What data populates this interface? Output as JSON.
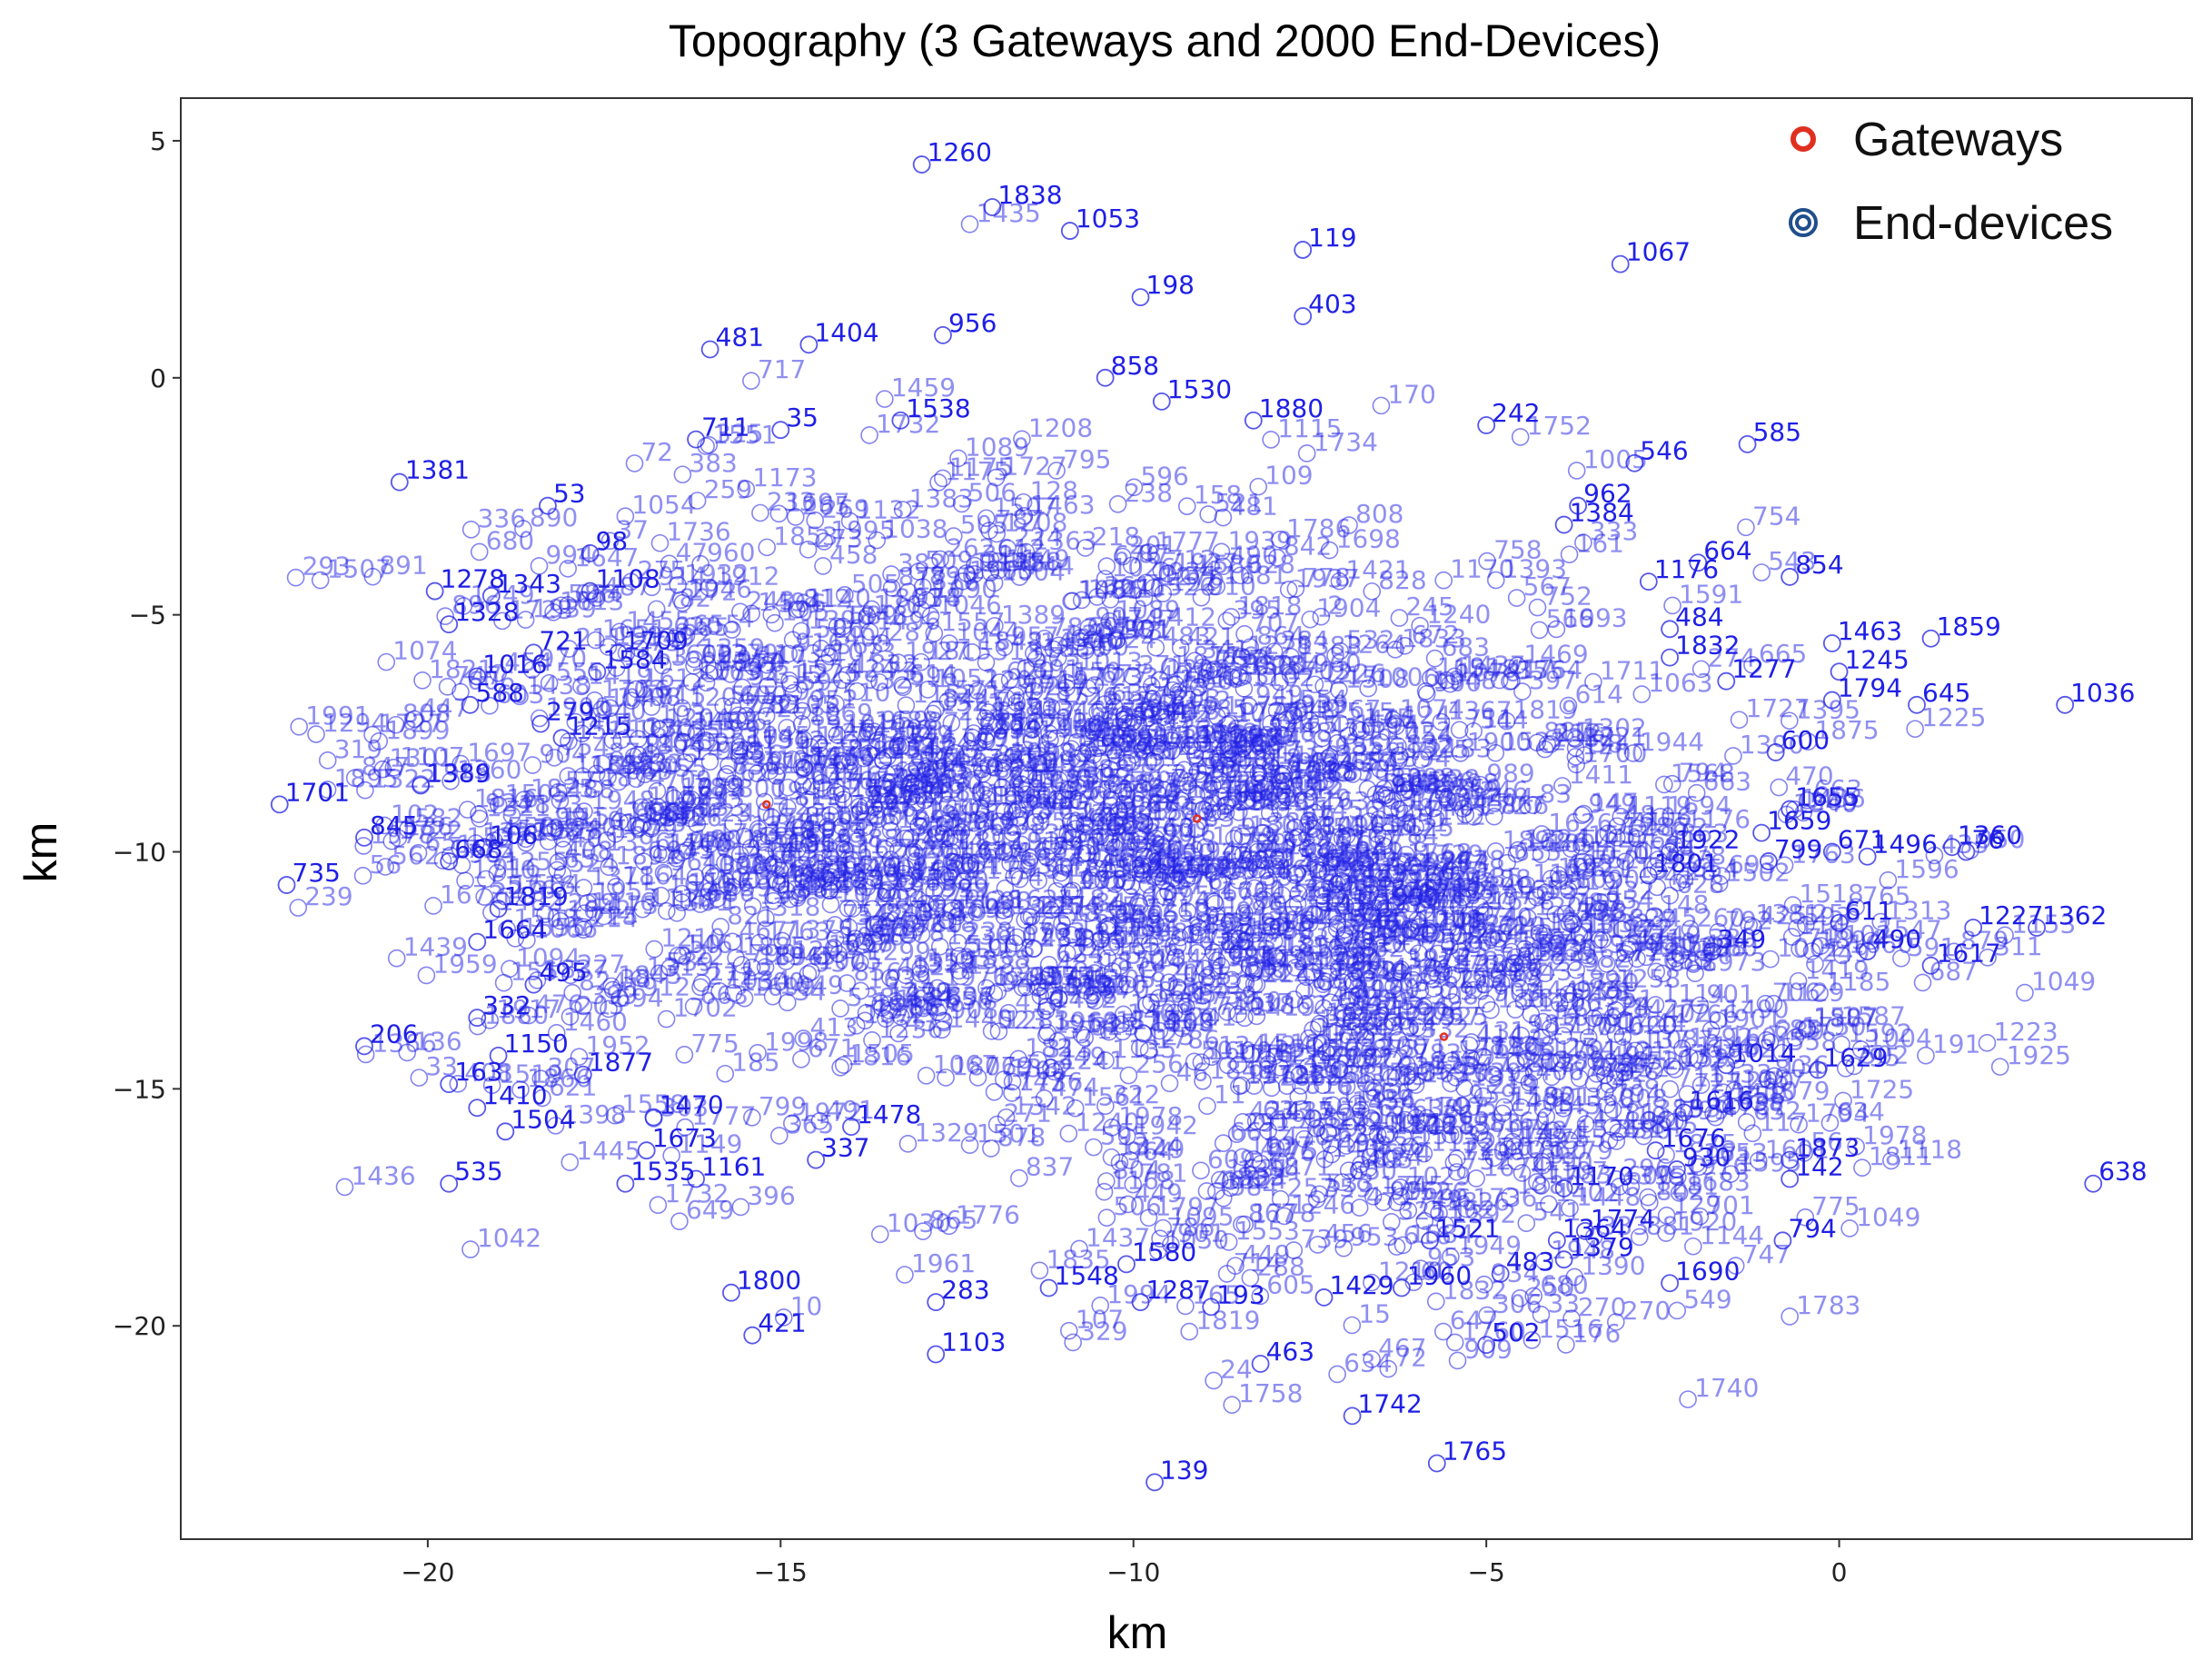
{
  "colors": {
    "end_device": "#1f1fe6",
    "gateway": "#e03020",
    "legend_end": "#1f4e8c"
  },
  "chart_data": {
    "type": "scatter",
    "title": "Topography (3 Gateways and 2000 End-Devices)",
    "xlabel": "km",
    "ylabel": "km",
    "xlim": [
      -23.5,
      5.0
    ],
    "ylim": [
      -24.5,
      5.9
    ],
    "xticks": [
      -20,
      -15,
      -10,
      -5,
      0
    ],
    "yticks": [
      5,
      0,
      -5,
      -10,
      -15,
      -20
    ],
    "xtick_labels": [
      "−20",
      "−15",
      "−10",
      "−5",
      "0"
    ],
    "ytick_labels": [
      "5",
      "0",
      "−5",
      "−10",
      "−15",
      "−20"
    ],
    "grid": false,
    "legend_position": "top-right",
    "series": [
      {
        "name": "Gateways",
        "points": [
          {
            "x": -15.2,
            "y": -9.0
          },
          {
            "x": -9.1,
            "y": -9.3
          },
          {
            "x": -5.6,
            "y": -13.9
          }
        ]
      },
      {
        "name": "End-devices",
        "labeled_points": [
          {
            "id": "1260",
            "x": -13.0,
            "y": 4.5
          },
          {
            "id": "1838",
            "x": -12.0,
            "y": 3.6
          },
          {
            "id": "1053",
            "x": -10.9,
            "y": 3.1
          },
          {
            "id": "119",
            "x": -7.6,
            "y": 2.7
          },
          {
            "id": "1067",
            "x": -3.1,
            "y": 2.4
          },
          {
            "id": "198",
            "x": -9.9,
            "y": 1.7
          },
          {
            "id": "403",
            "x": -7.6,
            "y": 1.3
          },
          {
            "id": "481",
            "x": -16.0,
            "y": 0.6
          },
          {
            "id": "1404",
            "x": -14.6,
            "y": 0.7
          },
          {
            "id": "956",
            "x": -12.7,
            "y": 0.9
          },
          {
            "id": "858",
            "x": -10.4,
            "y": 0.0
          },
          {
            "id": "1530",
            "x": -9.6,
            "y": -0.5
          },
          {
            "id": "1880",
            "x": -8.3,
            "y": -0.9
          },
          {
            "id": "242",
            "x": -5.0,
            "y": -1.0
          },
          {
            "id": "585",
            "x": -1.3,
            "y": -1.4
          },
          {
            "id": "546",
            "x": -2.9,
            "y": -1.8
          },
          {
            "id": "711",
            "x": -16.2,
            "y": -1.3
          },
          {
            "id": "35",
            "x": -15.0,
            "y": -1.1
          },
          {
            "id": "1538",
            "x": -13.3,
            "y": -0.9
          },
          {
            "id": "1381",
            "x": -20.4,
            "y": -2.2
          },
          {
            "id": "53",
            "x": -18.3,
            "y": -2.7
          },
          {
            "id": "962",
            "x": -3.7,
            "y": -2.7
          },
          {
            "id": "1384",
            "x": -3.9,
            "y": -3.1
          },
          {
            "id": "98",
            "x": -17.7,
            "y": -3.7
          },
          {
            "id": "664",
            "x": -2.0,
            "y": -3.9
          },
          {
            "id": "854",
            "x": -0.7,
            "y": -4.2
          },
          {
            "id": "1176",
            "x": -2.7,
            "y": -4.3
          },
          {
            "id": "1278",
            "x": -19.9,
            "y": -4.5
          },
          {
            "id": "1343",
            "x": -19.1,
            "y": -4.6
          },
          {
            "id": "1108",
            "x": -17.7,
            "y": -4.5
          },
          {
            "id": "1328",
            "x": -19.7,
            "y": -5.2
          },
          {
            "id": "1709",
            "x": -17.3,
            "y": -5.8
          },
          {
            "id": "484",
            "x": -2.4,
            "y": -5.3
          },
          {
            "id": "1832",
            "x": -2.4,
            "y": -5.9
          },
          {
            "id": "1463",
            "x": -0.1,
            "y": -5.6
          },
          {
            "id": "1859",
            "x": 1.3,
            "y": -5.5
          },
          {
            "id": "1245",
            "x": 0.0,
            "y": -6.2
          },
          {
            "id": "721",
            "x": -18.5,
            "y": -5.8
          },
          {
            "id": "1584",
            "x": -17.6,
            "y": -6.2
          },
          {
            "id": "1016",
            "x": -19.3,
            "y": -6.3
          },
          {
            "id": "588",
            "x": -19.4,
            "y": -6.9
          },
          {
            "id": "1277",
            "x": -1.6,
            "y": -6.4
          },
          {
            "id": "1794",
            "x": -0.1,
            "y": -6.8
          },
          {
            "id": "645",
            "x": 1.1,
            "y": -6.9
          },
          {
            "id": "1036",
            "x": 3.2,
            "y": -6.9
          },
          {
            "id": "279",
            "x": -18.4,
            "y": -7.3
          },
          {
            "id": "1215",
            "x": -18.1,
            "y": -7.6
          },
          {
            "id": "600",
            "x": -0.9,
            "y": -7.9
          },
          {
            "id": "1389",
            "x": -20.1,
            "y": -8.6
          },
          {
            "id": "1701",
            "x": -22.1,
            "y": -9.0
          },
          {
            "id": "845",
            "x": -20.9,
            "y": -9.7
          },
          {
            "id": "735",
            "x": -22.0,
            "y": -10.7
          },
          {
            "id": "1655",
            "x": -0.7,
            "y": -9.1
          },
          {
            "id": "1659",
            "x": -1.1,
            "y": -9.6
          },
          {
            "id": "1922",
            "x": -2.4,
            "y": -10.0
          },
          {
            "id": "671",
            "x": -0.1,
            "y": -10.0
          },
          {
            "id": "1496",
            "x": 0.4,
            "y": -10.1
          },
          {
            "id": "1360",
            "x": 1.6,
            "y": -9.9
          },
          {
            "id": "76",
            "x": 1.8,
            "y": -10.0
          },
          {
            "id": "799",
            "x": -1.0,
            "y": -10.2
          },
          {
            "id": "1801",
            "x": -2.7,
            "y": -10.5
          },
          {
            "id": "106",
            "x": -19.2,
            "y": -9.9
          },
          {
            "id": "668",
            "x": -19.7,
            "y": -10.2
          },
          {
            "id": "1819",
            "x": -19.0,
            "y": -11.2
          },
          {
            "id": "1664",
            "x": -19.3,
            "y": -11.9
          },
          {
            "id": "611",
            "x": 0.0,
            "y": -11.5
          },
          {
            "id": "1227",
            "x": 1.9,
            "y": -11.6
          },
          {
            "id": "1362",
            "x": 2.8,
            "y": -11.6
          },
          {
            "id": "490",
            "x": 0.4,
            "y": -12.1
          },
          {
            "id": "1617",
            "x": 1.3,
            "y": -12.4
          },
          {
            "id": "349",
            "x": -1.8,
            "y": -12.1
          },
          {
            "id": "495",
            "x": -18.5,
            "y": -12.8
          },
          {
            "id": "332",
            "x": -19.3,
            "y": -13.5
          },
          {
            "id": "206",
            "x": -20.9,
            "y": -14.1
          },
          {
            "id": "1150",
            "x": -19.0,
            "y": -14.3
          },
          {
            "id": "1877",
            "x": -17.8,
            "y": -14.7
          },
          {
            "id": "163",
            "x": -19.7,
            "y": -14.9
          },
          {
            "id": "1629",
            "x": -0.3,
            "y": -14.6
          },
          {
            "id": "1014",
            "x": -1.6,
            "y": -14.5
          },
          {
            "id": "1616",
            "x": -2.2,
            "y": -15.5
          },
          {
            "id": "1410",
            "x": -19.3,
            "y": -15.4
          },
          {
            "id": "1504",
            "x": -18.9,
            "y": -15.9
          },
          {
            "id": "1470",
            "x": -16.8,
            "y": -15.6
          },
          {
            "id": "1673",
            "x": -16.9,
            "y": -16.3
          },
          {
            "id": "1478",
            "x": -14.0,
            "y": -15.8
          },
          {
            "id": "337",
            "x": -14.5,
            "y": -16.5
          },
          {
            "id": "1676",
            "x": -2.6,
            "y": -16.3
          },
          {
            "id": "930",
            "x": -2.3,
            "y": -16.7
          },
          {
            "id": "1873",
            "x": -0.7,
            "y": -16.5
          },
          {
            "id": "142",
            "x": -0.7,
            "y": -16.9
          },
          {
            "id": "638",
            "x": 3.6,
            "y": -17.0
          },
          {
            "id": "535",
            "x": -19.7,
            "y": -17.0
          },
          {
            "id": "1535",
            "x": -17.2,
            "y": -17.0
          },
          {
            "id": "1161",
            "x": -16.2,
            "y": -16.9
          },
          {
            "id": "1170",
            "x": -3.9,
            "y": -17.1
          },
          {
            "id": "1774",
            "x": -3.6,
            "y": -18.0
          },
          {
            "id": "1364",
            "x": -4.0,
            "y": -18.2
          },
          {
            "id": "1379",
            "x": -3.9,
            "y": -18.6
          },
          {
            "id": "794",
            "x": -0.8,
            "y": -18.2
          },
          {
            "id": "1521",
            "x": -5.8,
            "y": -18.2
          },
          {
            "id": "483",
            "x": -4.8,
            "y": -18.9
          },
          {
            "id": "1690",
            "x": -2.4,
            "y": -19.1
          },
          {
            "id": "1800",
            "x": -15.7,
            "y": -19.3
          },
          {
            "id": "1580",
            "x": -10.1,
            "y": -18.7
          },
          {
            "id": "1548",
            "x": -11.2,
            "y": -19.2
          },
          {
            "id": "283",
            "x": -12.8,
            "y": -19.5
          },
          {
            "id": "1287",
            "x": -9.9,
            "y": -19.5
          },
          {
            "id": "193",
            "x": -8.9,
            "y": -19.6
          },
          {
            "id": "1429",
            "x": -7.3,
            "y": -19.4
          },
          {
            "id": "1960",
            "x": -6.2,
            "y": -19.2
          },
          {
            "id": "421",
            "x": -15.4,
            "y": -20.2
          },
          {
            "id": "1103",
            "x": -12.8,
            "y": -20.6
          },
          {
            "id": "502",
            "x": -5.0,
            "y": -20.4
          },
          {
            "id": "463",
            "x": -8.2,
            "y": -20.8
          },
          {
            "id": "1742",
            "x": -6.9,
            "y": -21.9
          },
          {
            "id": "1765",
            "x": -5.7,
            "y": -22.9
          },
          {
            "id": "139",
            "x": -9.7,
            "y": -23.3
          }
        ]
      }
    ],
    "legend": [
      {
        "label": "Gateways"
      },
      {
        "label": "End-devices"
      }
    ]
  }
}
